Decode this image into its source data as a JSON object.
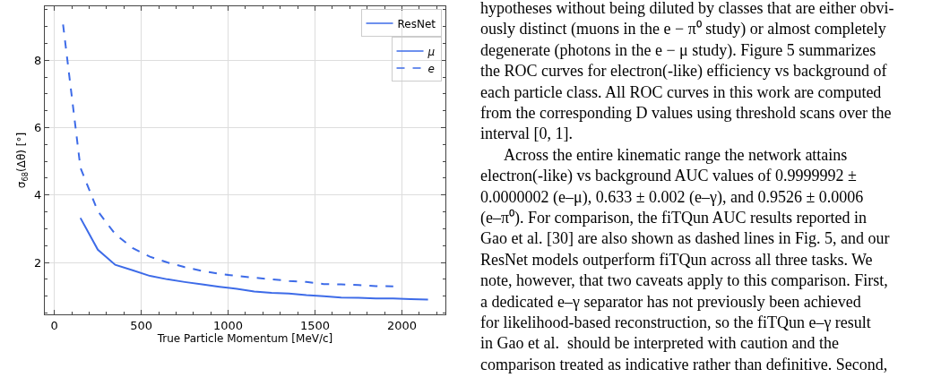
{
  "chart_data": {
    "type": "line",
    "xlabel": "True Particle Momentum [MeV/c]",
    "ylabel": "σ$_{68}$(Δθ) [°]",
    "legend_title": "ResNet",
    "xlim": [
      -55,
      2250
    ],
    "xticks": [
      0,
      500,
      1000,
      1500,
      2000
    ],
    "ylim": [
      0.46,
      9.6
    ],
    "yticks": [
      2,
      4,
      6,
      8
    ],
    "grid": true,
    "legend": "top right",
    "marker": "none",
    "series": [
      {
        "name": "μ",
        "color": "#3d6be8",
        "line_style": "solid",
        "x": [
          150,
          250,
          350,
          450,
          550,
          650,
          750,
          850,
          950,
          1050,
          1150,
          1250,
          1350,
          1450,
          1550,
          1650,
          1750,
          1850,
          1950,
          2050,
          2150
        ],
        "values": [
          3.32,
          2.38,
          1.93,
          1.77,
          1.6,
          1.5,
          1.42,
          1.35,
          1.28,
          1.22,
          1.14,
          1.1,
          1.08,
          1.03,
          1.0,
          0.96,
          0.95,
          0.93,
          0.93,
          0.91,
          0.9
        ]
      },
      {
        "name": "e",
        "color": "#3d6be8",
        "line_style": "dashed",
        "x": [
          50,
          150,
          250,
          350,
          450,
          550,
          650,
          750,
          850,
          950,
          1050,
          1150,
          1250,
          1350,
          1450,
          1550,
          1650,
          1750,
          1850,
          1950
        ],
        "values": [
          9.06,
          4.81,
          3.52,
          2.84,
          2.43,
          2.17,
          2.0,
          1.86,
          1.75,
          1.66,
          1.6,
          1.55,
          1.5,
          1.45,
          1.42,
          1.36,
          1.35,
          1.33,
          1.3,
          1.29
        ]
      }
    ],
    "annotations": [
      "hypotheses without being diluted by classes that are either obvi-\nously distinct (muons in the e − π⁰ study) or almost completely\ndegenerate (photons in the e − μ study). Figure 5 summarizes\nthe ROC curves for electron(-like) efficiency vs background of\neach particle class. All ROC curves in this work are computed\nfrom the corresponding D values using threshold scans over the\ninterval [0, 1].\n      Across the entire kinematic range the network attains\nelectron(-like) vs background AUC values of 0.9999992 ±\n0.0000002 (e–μ), 0.633 ± 0.002 (e–γ), and 0.9526 ± 0.0006\n(e–π⁰). For comparison, the fiTQun AUC results reported in\nGao et al. [30] are also shown as dashed lines in Fig. 5, and our\nResNet models outperform fiTQun across all three tasks. We\nnote, however, that two caveats apply to this comparison. First,\na dedicated e–γ separator has not previously been achieved\nfor likelihood-based reconstruction, so the fiTQun e–γ result\nin Gao et al.  should be interpreted with caution and the\ncomparison treated as indicative rather than definitive. Second,"
    ]
  }
}
